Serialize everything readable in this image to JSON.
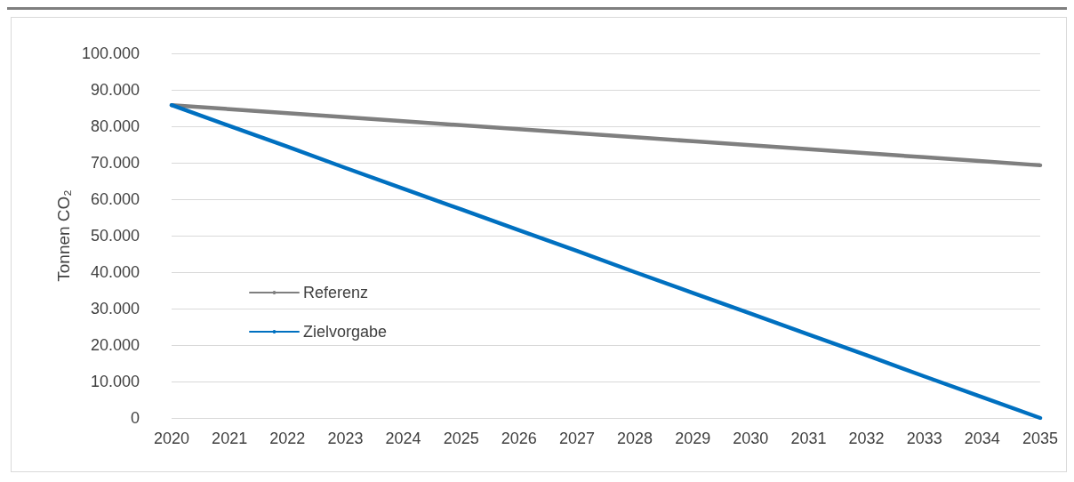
{
  "chart_data": {
    "type": "line",
    "ylabel": "Tonnen CO₂",
    "categories": [
      "2020",
      "2021",
      "2022",
      "2023",
      "2024",
      "2025",
      "2026",
      "2027",
      "2028",
      "2029",
      "2030",
      "2031",
      "2032",
      "2033",
      "2034",
      "2035"
    ],
    "series": [
      {
        "name": "Referenz",
        "color": "#7f7f7f",
        "values": [
          85800,
          84700,
          83600,
          82500,
          81400,
          80300,
          79200,
          78100,
          77000,
          75900,
          74800,
          73700,
          72600,
          71500,
          70400,
          69300
        ]
      },
      {
        "name": "Zielvorgabe",
        "color": "#0070c0",
        "values": [
          85800,
          80100,
          74400,
          68600,
          62900,
          57200,
          51500,
          45800,
          40000,
          34300,
          28600,
          22900,
          17200,
          11400,
          5700,
          0
        ]
      }
    ],
    "ylim": [
      0,
      100000
    ],
    "yticks": [
      0,
      {
        "value": 10000,
        "label": "10.000"
      },
      {
        "value": 20000,
        "label": "20.000"
      },
      {
        "value": 30000,
        "label": "30.000"
      },
      {
        "value": 40000,
        "label": "40.000"
      },
      {
        "value": 50000,
        "label": "50.000"
      },
      {
        "value": 60000,
        "label": "60.000"
      },
      {
        "value": 70000,
        "label": "70.000"
      },
      {
        "value": 80000,
        "label": "80.000"
      },
      {
        "value": 90000,
        "label": "90.000"
      },
      {
        "value": 100000,
        "label": "100.000"
      }
    ],
    "grid": "y",
    "legend": "left",
    "marker": "none",
    "line_style": "solid"
  }
}
